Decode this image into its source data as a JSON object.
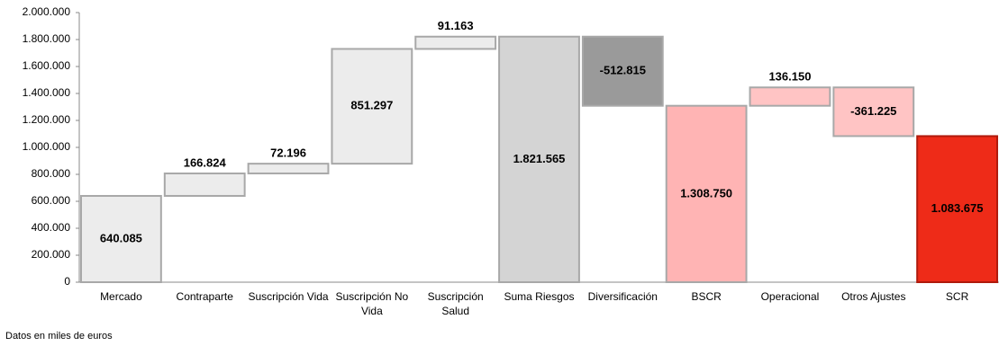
{
  "chart_data": {
    "type": "waterfall",
    "note": "Datos en miles de euros",
    "categories": [
      "Mercado",
      "Contraparte",
      "Suscripción Vida",
      "Suscripción No Vida",
      "Suscripción Salud",
      "Suma Riesgos",
      "Diversificación",
      "BSCR",
      "Operacional",
      "Otros Ajustes",
      "SCR"
    ],
    "values": [
      640085,
      166824,
      72196,
      851297,
      91163,
      1821565,
      -512815,
      1308750,
      136150,
      -361225,
      1083675
    ],
    "value_labels": [
      "640.085",
      "166.824",
      "72.196",
      "851.297",
      "91.163",
      "1.821.565",
      "-512.815",
      "1.308.750",
      "136.150",
      "-361.225",
      "1.083.675"
    ],
    "totals": [
      false,
      false,
      false,
      false,
      false,
      true,
      false,
      true,
      false,
      false,
      true
    ],
    "colors": [
      "#ececec",
      "#ececec",
      "#ececec",
      "#ececec",
      "#ececec",
      "#d4d4d4",
      "#9a9a9a",
      "#ffb4b4",
      "#ffc4c4",
      "#ffc4c4",
      "#ee2b18"
    ],
    "ylim": [
      0,
      2000000
    ],
    "yticks": [
      0,
      {
        "value": 200000,
        "label": "200.000"
      },
      {
        "value": 400000,
        "label": "400.000"
      },
      {
        "value": 600000,
        "label": "600.000"
      },
      {
        "value": 800000,
        "label": "800.000"
      },
      {
        "value": 1000000,
        "label": "1.000.000"
      },
      {
        "value": 1200000,
        "label": "1.200.000"
      },
      {
        "value": 1400000,
        "label": "1.400.000"
      },
      {
        "value": 1600000,
        "label": "1.600.000"
      },
      {
        "value": 1800000,
        "label": "1.800.000"
      },
      {
        "value": 2000000,
        "label": "2.000.000"
      }
    ],
    "grid": false
  }
}
